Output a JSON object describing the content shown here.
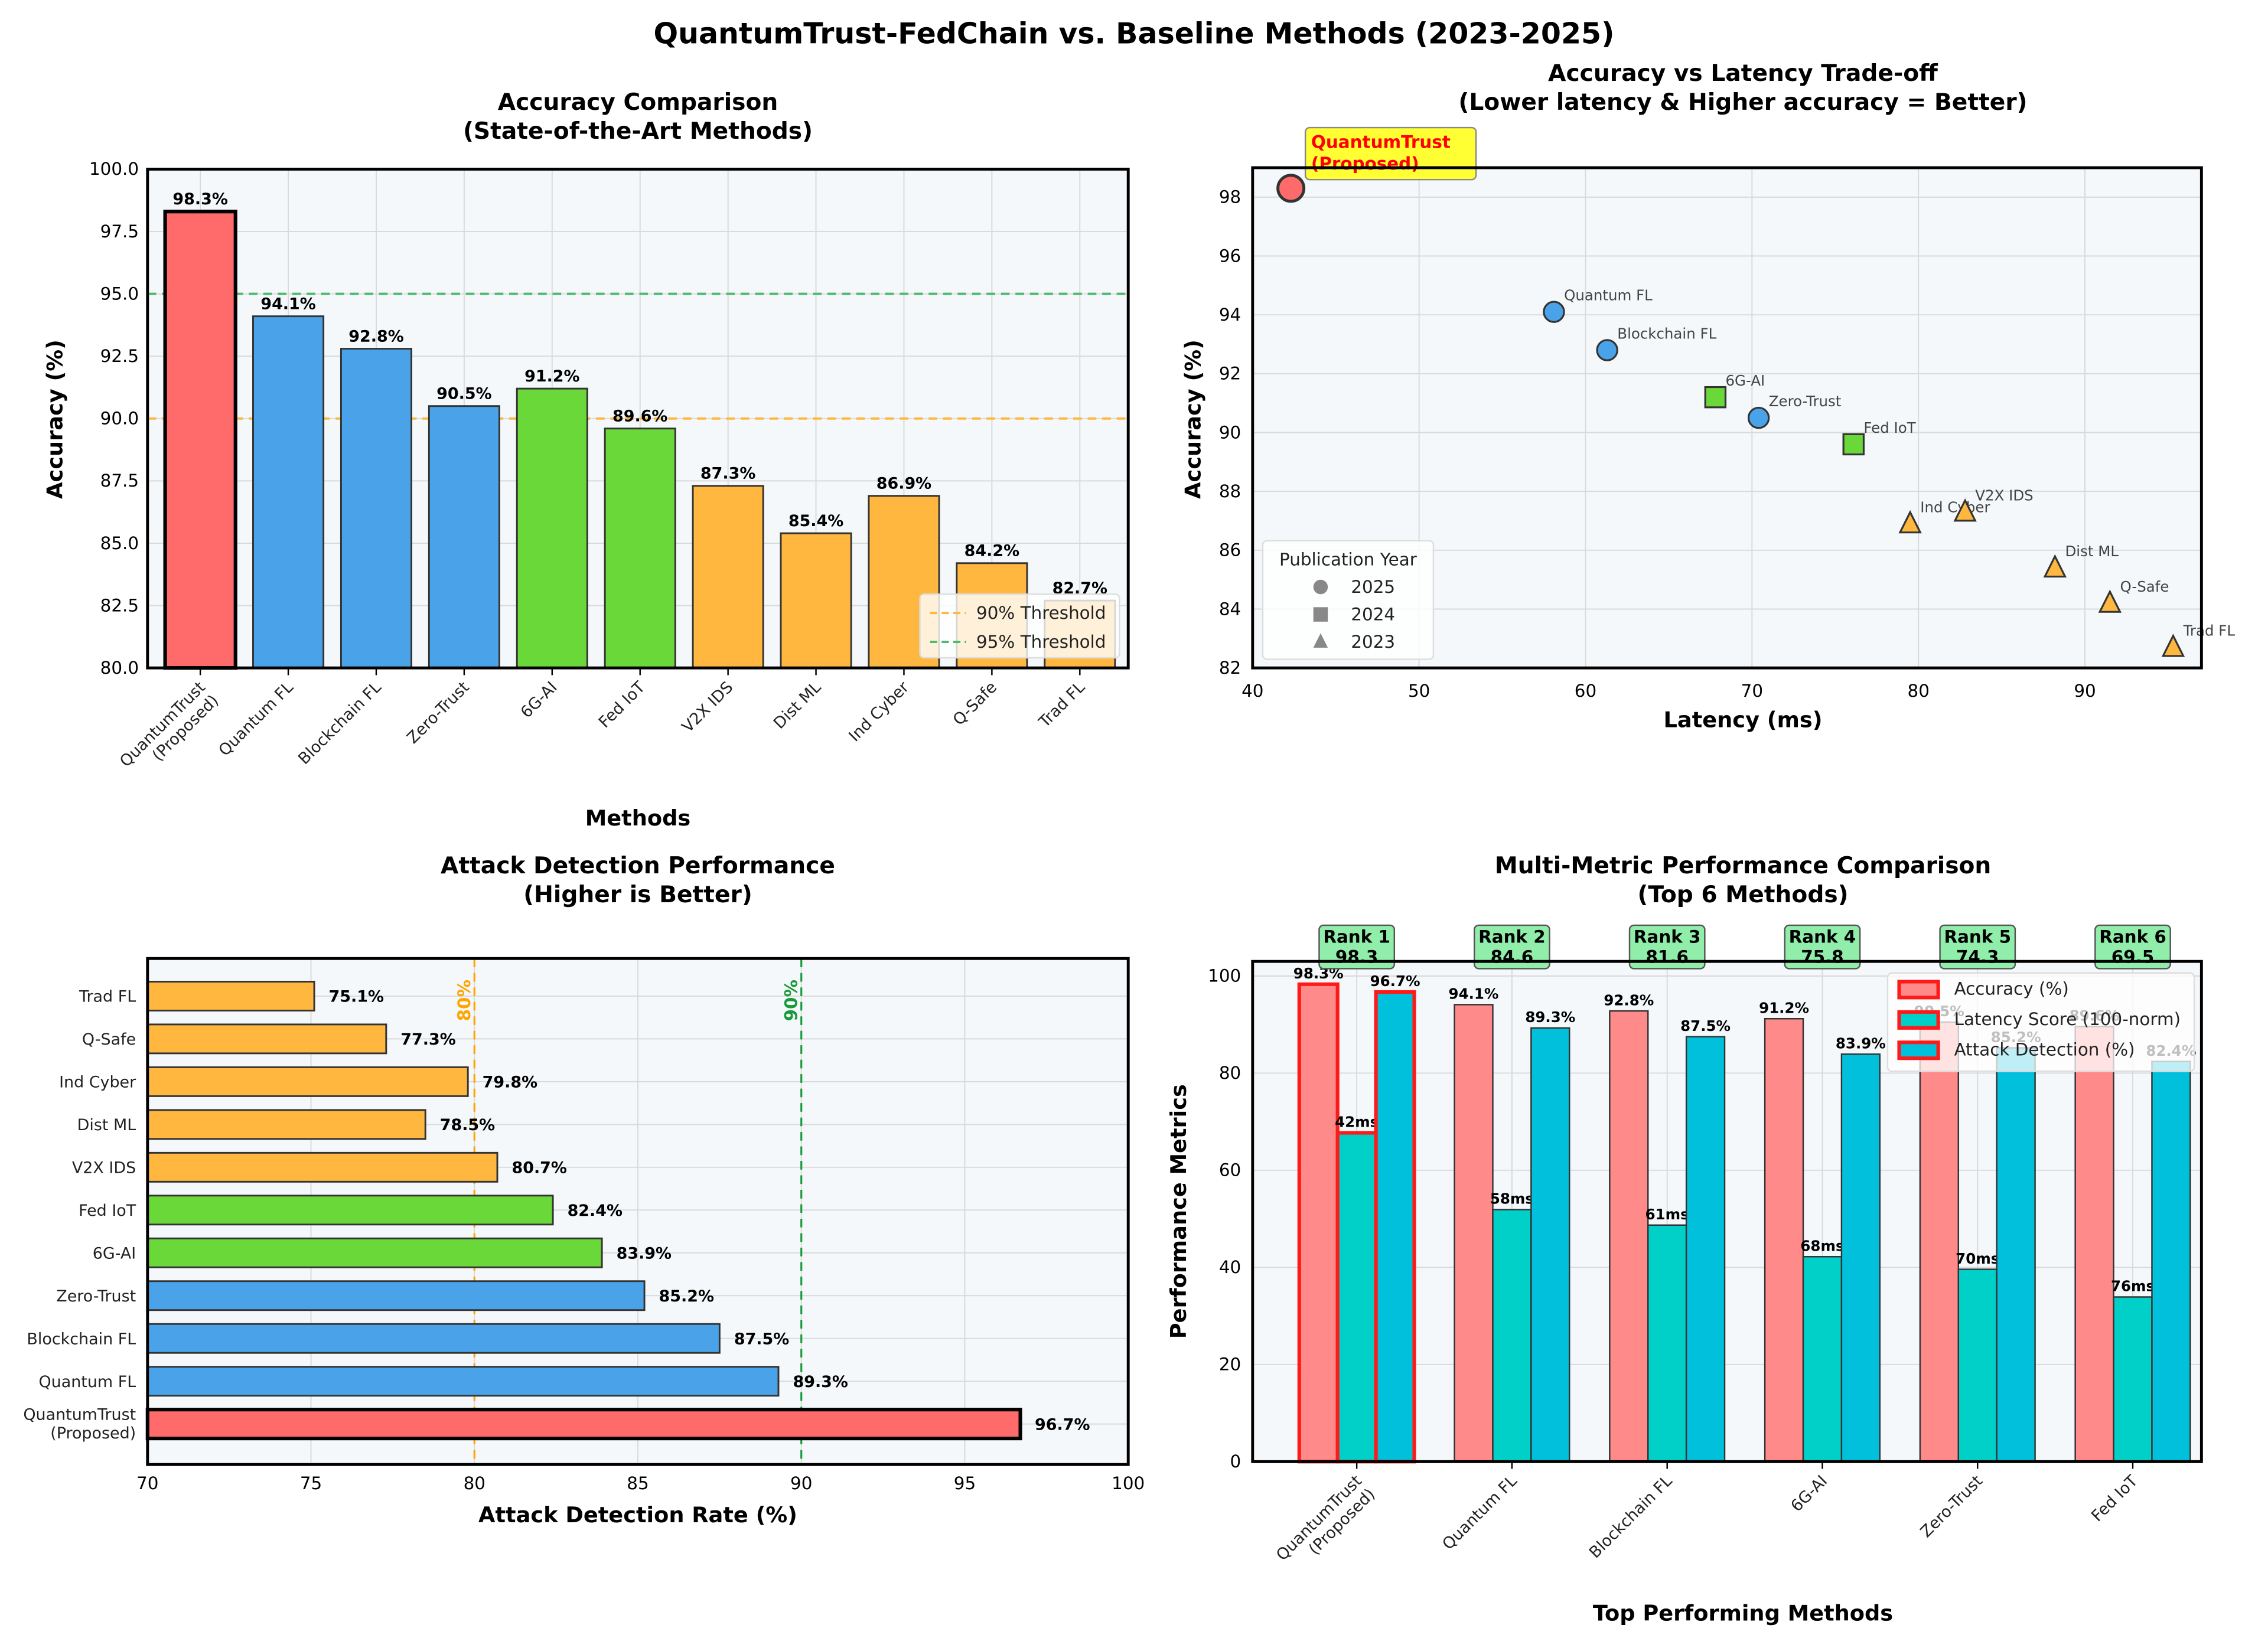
{
  "figure": {
    "title": "QuantumTrust-FedChain vs. Baseline Methods (2023-2025)"
  },
  "chart_data": [
    {
      "id": "accuracy",
      "type": "bar",
      "title": "Accuracy Comparison\n(State-of-the-Art Methods)",
      "title_lines": [
        "Accuracy Comparison",
        "(State-of-the-Art Methods)"
      ],
      "xlabel": "Methods",
      "ylabel": "Accuracy (%)",
      "ylim": [
        80,
        100
      ],
      "yticks": [
        "80.0",
        "82.5",
        "85.0",
        "87.5",
        "90.0",
        "92.5",
        "95.0",
        "97.5",
        "100.0"
      ],
      "ytick_values": [
        80,
        82.5,
        85,
        87.5,
        90,
        92.5,
        95,
        97.5,
        100
      ],
      "categories": [
        "QuantumTrust\n(Proposed)",
        "Quantum FL",
        "Blockchain FL",
        "Zero-Trust",
        "6G-AI",
        "Fed IoT",
        "V2X IDS",
        "Dist ML",
        "Ind Cyber",
        "Q-Safe",
        "Trad FL"
      ],
      "values": [
        98.3,
        94.1,
        92.8,
        90.5,
        91.2,
        89.6,
        87.3,
        85.4,
        86.9,
        84.2,
        82.7
      ],
      "value_labels": [
        "98.3%",
        "94.1%",
        "92.8%",
        "90.5%",
        "91.2%",
        "89.6%",
        "87.3%",
        "85.4%",
        "86.9%",
        "84.2%",
        "82.7%"
      ],
      "colors": [
        "#ff6b6b",
        "#4aa3e8",
        "#4aa3e8",
        "#4aa3e8",
        "#6bd83a",
        "#6bd83a",
        "#ffb740",
        "#ffb740",
        "#ffb740",
        "#ffb740",
        "#ffb740"
      ],
      "reference_lines": [
        {
          "value": 90,
          "label": "90% Threshold",
          "color": "#ffb740"
        },
        {
          "value": 95,
          "label": "95% Threshold",
          "color": "#4cbb6c"
        }
      ],
      "legend_position": "lower-right",
      "grid": true
    },
    {
      "id": "tradeoff",
      "type": "scatter",
      "title_lines": [
        "Accuracy vs Latency Trade-off",
        "(Lower latency & Higher accuracy = Better)"
      ],
      "xlabel": "Latency (ms)",
      "ylabel": "Accuracy (%)",
      "xlim": [
        40,
        97
      ],
      "ylim": [
        82,
        99
      ],
      "xticks": [
        40,
        50,
        60,
        70,
        80,
        90
      ],
      "yticks": [
        82,
        84,
        86,
        88,
        90,
        92,
        94,
        96,
        98
      ],
      "points": [
        {
          "name": "QuantumTrust (Proposed)",
          "x": 42.3,
          "y": 98.3,
          "year": 2025,
          "color": "#ff6b6b",
          "highlight": true
        },
        {
          "name": "Quantum FL",
          "x": 58.1,
          "y": 94.1,
          "year": 2025,
          "color": "#4aa3e8"
        },
        {
          "name": "Blockchain FL",
          "x": 61.3,
          "y": 92.8,
          "year": 2025,
          "color": "#4aa3e8"
        },
        {
          "name": "6G-AI",
          "x": 67.8,
          "y": 91.2,
          "year": 2024,
          "color": "#6bd83a"
        },
        {
          "name": "Zero-Trust",
          "x": 70.4,
          "y": 90.5,
          "year": 2025,
          "color": "#4aa3e8"
        },
        {
          "name": "Fed IoT",
          "x": 76.1,
          "y": 89.6,
          "year": 2024,
          "color": "#6bd83a"
        },
        {
          "name": "Ind Cyber",
          "x": 79.5,
          "y": 86.9,
          "year": 2023,
          "color": "#ffb740"
        },
        {
          "name": "V2X IDS",
          "x": 82.8,
          "y": 87.3,
          "year": 2023,
          "color": "#ffb740"
        },
        {
          "name": "Dist ML",
          "x": 88.2,
          "y": 85.4,
          "year": 2023,
          "color": "#ffb740"
        },
        {
          "name": "Q-Safe",
          "x": 91.5,
          "y": 84.2,
          "year": 2023,
          "color": "#ffb740"
        },
        {
          "name": "Trad FL",
          "x": 95.3,
          "y": 82.7,
          "year": 2023,
          "color": "#ffb740"
        }
      ],
      "highlight_label": [
        "QuantumTrust",
        "(Proposed)"
      ],
      "legend": {
        "title": "Publication Year",
        "position": "lower-left",
        "entries": [
          {
            "label": "2025",
            "marker": "circle"
          },
          {
            "label": "2024",
            "marker": "square"
          },
          {
            "label": "2023",
            "marker": "triangle"
          }
        ]
      },
      "grid": true
    },
    {
      "id": "attack",
      "type": "bar",
      "orientation": "horizontal",
      "title_lines": [
        "Attack Detection Performance",
        "(Higher is Better)"
      ],
      "xlabel": "Attack Detection Rate (%)",
      "ylabel": "",
      "xlim": [
        70,
        100
      ],
      "xticks": [
        70,
        75,
        80,
        85,
        90,
        95,
        100
      ],
      "categories": [
        "QuantumTrust\n(Proposed)",
        "Quantum FL",
        "Blockchain FL",
        "Zero-Trust",
        "6G-AI",
        "Fed IoT",
        "V2X IDS",
        "Dist ML",
        "Ind Cyber",
        "Q-Safe",
        "Trad FL"
      ],
      "values": [
        96.7,
        89.3,
        87.5,
        85.2,
        83.9,
        82.4,
        80.7,
        78.5,
        79.8,
        77.3,
        75.1
      ],
      "value_labels": [
        "96.7%",
        "89.3%",
        "87.5%",
        "85.2%",
        "83.9%",
        "82.4%",
        "80.7%",
        "78.5%",
        "79.8%",
        "77.3%",
        "75.1%"
      ],
      "colors": [
        "#ff6b6b",
        "#4aa3e8",
        "#4aa3e8",
        "#4aa3e8",
        "#6bd83a",
        "#6bd83a",
        "#ffb740",
        "#ffb740",
        "#ffb740",
        "#ffb740",
        "#ffb740"
      ],
      "reference_lines": [
        {
          "value": 80,
          "label": "80%",
          "color": "#ffa500"
        },
        {
          "value": 90,
          "label": "90%",
          "color": "#1a9a3a"
        }
      ],
      "grid": true
    },
    {
      "id": "multi",
      "type": "bar",
      "grouped": true,
      "title_lines": [
        "Multi-Metric Performance Comparison",
        "(Top 6 Methods)"
      ],
      "xlabel": "Top Performing Methods",
      "ylabel": "Performance Metrics",
      "ylim": [
        0,
        103
      ],
      "yticks": [
        0,
        20,
        40,
        60,
        80,
        100
      ],
      "categories": [
        "QuantumTrust\n(Proposed)",
        "Quantum FL",
        "Blockchain FL",
        "6G-AI",
        "Zero-Trust",
        "Fed IoT"
      ],
      "series": [
        {
          "name": "Accuracy (%)",
          "color": "#ff8a8a",
          "values": [
            98.3,
            94.1,
            92.8,
            91.2,
            90.5,
            89.6
          ],
          "labels": [
            "98.3%",
            "94.1%",
            "92.8%",
            "91.2%",
            "90.5%",
            "89.6%"
          ]
        },
        {
          "name": "Latency Score (100-norm)",
          "color": "#00d0c8",
          "values": [
            67.7,
            51.9,
            48.7,
            42.2,
            39.6,
            33.9
          ],
          "labels": [
            "42ms",
            "58ms",
            "61ms",
            "68ms",
            "70ms",
            "76ms"
          ]
        },
        {
          "name": "Attack Detection (%)",
          "color": "#00c0dc",
          "values": [
            96.7,
            89.3,
            87.5,
            83.9,
            85.2,
            82.4
          ],
          "labels": [
            "96.7%",
            "89.3%",
            "87.5%",
            "83.9%",
            "85.2%",
            "82.4%"
          ]
        }
      ],
      "ranks": [
        {
          "label": "Rank 1",
          "score": "98.3"
        },
        {
          "label": "Rank 2",
          "score": "84.6"
        },
        {
          "label": "Rank 3",
          "score": "81.6"
        },
        {
          "label": "Rank 4",
          "score": "75.8"
        },
        {
          "label": "Rank 5",
          "score": "74.3"
        },
        {
          "label": "Rank 6",
          "score": "69.5"
        }
      ],
      "highlight_index": 0,
      "legend_position": "upper-right",
      "grid": true
    }
  ]
}
